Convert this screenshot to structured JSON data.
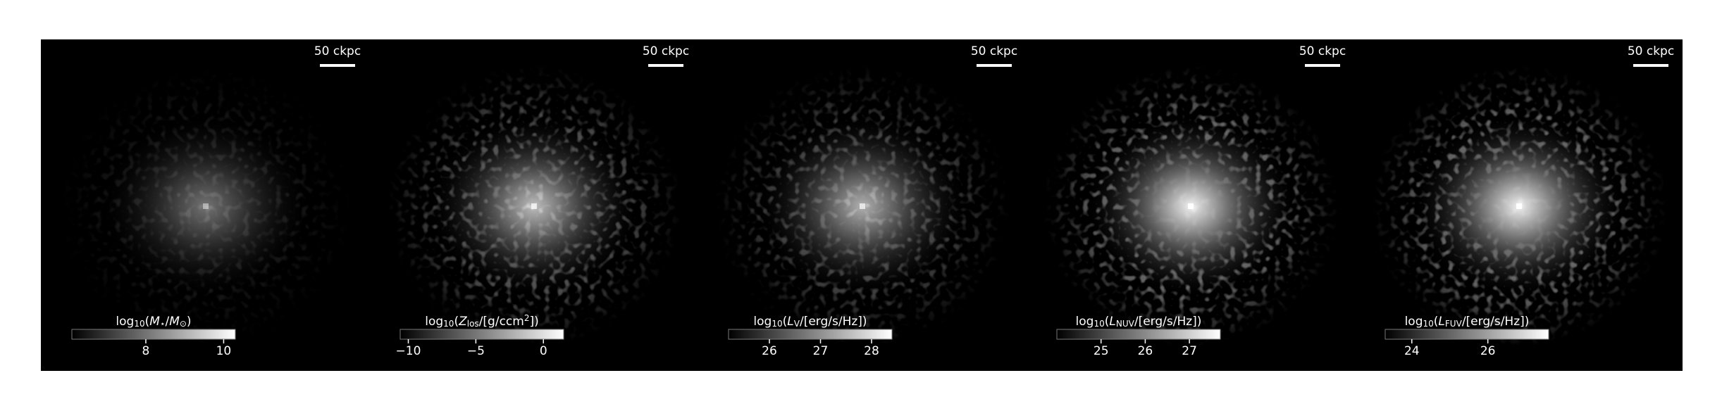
{
  "chart_data": [
    {
      "type": "image",
      "scalebar_label": "50 ckpc",
      "colormap": "gray",
      "colorbar_label": [
        {
          "text": "log"
        },
        {
          "text": "10",
          "style": "sub"
        },
        {
          "text": "("
        },
        {
          "text": "M",
          "style": "italic"
        },
        {
          "text": "⋆",
          "style": "sub"
        },
        {
          "text": "/"
        },
        {
          "text": "M",
          "style": "italic"
        },
        {
          "text": "⊙",
          "style": "sub"
        },
        {
          "text": ")"
        }
      ],
      "clim": [
        6.1,
        10.3
      ],
      "cticks": [
        8,
        10
      ]
    },
    {
      "type": "image",
      "scalebar_label": "50 ckpc",
      "colormap": "gray",
      "colorbar_label": [
        {
          "text": "log"
        },
        {
          "text": "10",
          "style": "sub"
        },
        {
          "text": "("
        },
        {
          "text": "Z",
          "style": "italic"
        },
        {
          "text": "los",
          "style": "sub"
        },
        {
          "text": "/[g/ccm"
        },
        {
          "text": "2",
          "style": "sup"
        },
        {
          "text": "])"
        }
      ],
      "clim": [
        -10.6,
        1.5
      ],
      "cticks": [
        {
          "value": -10,
          "label": "−10"
        },
        {
          "value": -5,
          "label": "−5"
        },
        0
      ]
    },
    {
      "type": "image",
      "scalebar_label": "50 ckpc",
      "colormap": "gray",
      "colorbar_label": [
        {
          "text": "log"
        },
        {
          "text": "10",
          "style": "sub"
        },
        {
          "text": "("
        },
        {
          "text": "L",
          "style": "italic"
        },
        {
          "text": "V",
          "style": "sub"
        },
        {
          "text": "/[erg/s/Hz])"
        }
      ],
      "clim": [
        25.2,
        28.4
      ],
      "cticks": [
        26,
        27,
        28
      ]
    },
    {
      "type": "image",
      "scalebar_label": "50 ckpc",
      "colormap": "gray",
      "colorbar_label": [
        {
          "text": "log"
        },
        {
          "text": "10",
          "style": "sub"
        },
        {
          "text": "("
        },
        {
          "text": "L",
          "style": "italic"
        },
        {
          "text": "NUV",
          "style": "sub"
        },
        {
          "text": "/[erg/s/Hz])"
        }
      ],
      "clim": [
        24.0,
        27.7
      ],
      "cticks": [
        25,
        26,
        27
      ]
    },
    {
      "type": "image",
      "scalebar_label": "50 ckpc",
      "colormap": "gray",
      "colorbar_label": [
        {
          "text": "log"
        },
        {
          "text": "10",
          "style": "sub"
        },
        {
          "text": "("
        },
        {
          "text": "L",
          "style": "italic"
        },
        {
          "text": "FUV",
          "style": "sub"
        },
        {
          "text": "/[erg/s/Hz])"
        }
      ],
      "clim": [
        23.3,
        27.6
      ],
      "cticks": [
        24,
        26
      ]
    }
  ]
}
